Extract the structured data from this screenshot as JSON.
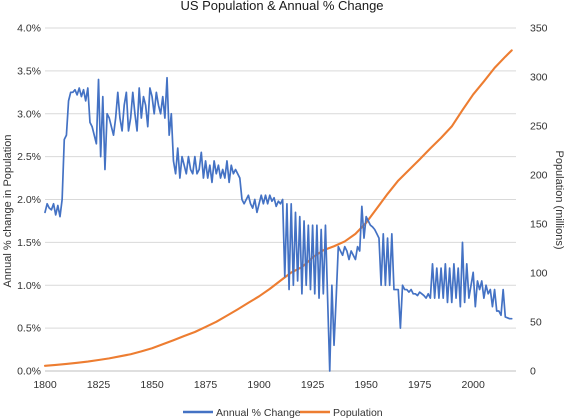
{
  "chart_data": {
    "type": "line",
    "title": "US Population & Annual % Change",
    "xlabel": "",
    "ylabel": "Annual % change in Population",
    "y2label": "Population (millions)",
    "xlim": [
      1800,
      2020
    ],
    "ylim": [
      0.0,
      4.0
    ],
    "y2lim": [
      0,
      350
    ],
    "x_ticks": [
      "1800",
      "1825",
      "1850",
      "1875",
      "1900",
      "1925",
      "1950",
      "1975",
      "2000"
    ],
    "y_ticks": [
      "0.0%",
      "0.5%",
      "1.0%",
      "1.5%",
      "2.0%",
      "2.5%",
      "3.0%",
      "3.5%",
      "4.0%"
    ],
    "y2_ticks": [
      "0",
      "50",
      "100",
      "150",
      "200",
      "250",
      "300",
      "350"
    ],
    "grid": true,
    "legend_position": "bottom",
    "series": [
      {
        "name": "Annual % Change",
        "axis": "left",
        "color": "#4472C4",
        "points": [
          [
            1800,
            1.85
          ],
          [
            1801,
            1.95
          ],
          [
            1802,
            1.9
          ],
          [
            1803,
            1.88
          ],
          [
            1804,
            1.95
          ],
          [
            1805,
            1.82
          ],
          [
            1806,
            1.93
          ],
          [
            1807,
            1.8
          ],
          [
            1808,
            2.0
          ],
          [
            1809,
            2.7
          ],
          [
            1810,
            2.75
          ],
          [
            1811,
            3.15
          ],
          [
            1812,
            3.25
          ],
          [
            1813,
            3.25
          ],
          [
            1814,
            3.28
          ],
          [
            1815,
            3.22
          ],
          [
            1816,
            3.3
          ],
          [
            1817,
            3.2
          ],
          [
            1818,
            3.28
          ],
          [
            1819,
            3.15
          ],
          [
            1820,
            3.3
          ],
          [
            1821,
            2.9
          ],
          [
            1822,
            2.85
          ],
          [
            1823,
            2.75
          ],
          [
            1824,
            2.65
          ],
          [
            1825,
            3.4
          ],
          [
            1826,
            2.5
          ],
          [
            1827,
            3.2
          ],
          [
            1828,
            2.35
          ],
          [
            1829,
            3.0
          ],
          [
            1830,
            2.95
          ],
          [
            1831,
            2.85
          ],
          [
            1832,
            2.75
          ],
          [
            1833,
            2.95
          ],
          [
            1834,
            3.25
          ],
          [
            1835,
            2.95
          ],
          [
            1836,
            2.8
          ],
          [
            1837,
            3.1
          ],
          [
            1838,
            3.25
          ],
          [
            1839,
            2.8
          ],
          [
            1840,
            2.95
          ],
          [
            1841,
            3.25
          ],
          [
            1842,
            3.0
          ],
          [
            1843,
            2.8
          ],
          [
            1844,
            3.3
          ],
          [
            1845,
            2.95
          ],
          [
            1846,
            3.2
          ],
          [
            1847,
            3.1
          ],
          [
            1848,
            2.85
          ],
          [
            1849,
            3.3
          ],
          [
            1850,
            3.2
          ],
          [
            1851,
            3.0
          ],
          [
            1852,
            3.25
          ],
          [
            1853,
            3.1
          ],
          [
            1854,
            3.0
          ],
          [
            1855,
            3.2
          ],
          [
            1856,
            2.95
          ],
          [
            1857,
            3.42
          ],
          [
            1858,
            2.75
          ],
          [
            1859,
            3.0
          ],
          [
            1860,
            2.45
          ],
          [
            1861,
            2.3
          ],
          [
            1862,
            2.6
          ],
          [
            1863,
            2.25
          ],
          [
            1864,
            2.5
          ],
          [
            1865,
            2.4
          ],
          [
            1866,
            2.3
          ],
          [
            1867,
            2.5
          ],
          [
            1868,
            2.35
          ],
          [
            1869,
            2.3
          ],
          [
            1870,
            2.5
          ],
          [
            1871,
            2.3
          ],
          [
            1872,
            2.35
          ],
          [
            1873,
            2.55
          ],
          [
            1874,
            2.25
          ],
          [
            1875,
            2.45
          ],
          [
            1876,
            2.25
          ],
          [
            1877,
            2.4
          ],
          [
            1878,
            2.2
          ],
          [
            1879,
            2.45
          ],
          [
            1880,
            2.3
          ],
          [
            1881,
            2.4
          ],
          [
            1882,
            2.25
          ],
          [
            1883,
            2.35
          ],
          [
            1884,
            2.25
          ],
          [
            1885,
            2.45
          ],
          [
            1886,
            2.2
          ],
          [
            1887,
            2.4
          ],
          [
            1888,
            2.3
          ],
          [
            1889,
            2.35
          ],
          [
            1890,
            2.3
          ],
          [
            1891,
            2.25
          ],
          [
            1892,
            2.0
          ],
          [
            1893,
            1.95
          ],
          [
            1894,
            2.0
          ],
          [
            1895,
            2.05
          ],
          [
            1896,
            1.95
          ],
          [
            1897,
            1.9
          ],
          [
            1898,
            2.0
          ],
          [
            1899,
            1.85
          ],
          [
            1900,
            1.95
          ],
          [
            1901,
            2.05
          ],
          [
            1902,
            1.95
          ],
          [
            1903,
            2.05
          ],
          [
            1904,
            1.95
          ],
          [
            1905,
            2.05
          ],
          [
            1906,
            1.98
          ],
          [
            1907,
            2.02
          ],
          [
            1908,
            1.92
          ],
          [
            1909,
            1.98
          ],
          [
            1910,
            1.95
          ],
          [
            1911,
            2.0
          ],
          [
            1912,
            1.1
          ],
          [
            1913,
            1.95
          ],
          [
            1914,
            0.95
          ],
          [
            1915,
            1.95
          ],
          [
            1916,
            1.0
          ],
          [
            1917,
            1.85
          ],
          [
            1918,
            1.05
          ],
          [
            1919,
            1.8
          ],
          [
            1920,
            0.9
          ],
          [
            1921,
            1.75
          ],
          [
            1922,
            1.0
          ],
          [
            1923,
            1.7
          ],
          [
            1924,
            0.95
          ],
          [
            1925,
            1.7
          ],
          [
            1926,
            0.9
          ],
          [
            1927,
            1.7
          ],
          [
            1928,
            0.85
          ],
          [
            1929,
            1.65
          ],
          [
            1930,
            0.9
          ],
          [
            1931,
            1.7
          ],
          [
            1932,
            0.85
          ],
          [
            1933,
            0.0
          ],
          [
            1934,
            1.0
          ],
          [
            1935,
            0.3
          ],
          [
            1936,
            0.85
          ],
          [
            1937,
            1.45
          ],
          [
            1938,
            1.4
          ],
          [
            1939,
            1.35
          ],
          [
            1940,
            1.45
          ],
          [
            1941,
            1.4
          ],
          [
            1942,
            1.3
          ],
          [
            1943,
            1.4
          ],
          [
            1944,
            1.35
          ],
          [
            1945,
            1.3
          ],
          [
            1946,
            1.45
          ],
          [
            1947,
            1.4
          ],
          [
            1948,
            1.92
          ],
          [
            1949,
            1.55
          ],
          [
            1950,
            1.8
          ],
          [
            1951,
            1.75
          ],
          [
            1952,
            1.7
          ],
          [
            1953,
            1.68
          ],
          [
            1954,
            1.65
          ],
          [
            1955,
            1.6
          ],
          [
            1956,
            1.55
          ],
          [
            1957,
            1.0
          ],
          [
            1958,
            1.6
          ],
          [
            1959,
            1.0
          ],
          [
            1960,
            1.55
          ],
          [
            1961,
            1.0
          ],
          [
            1962,
            1.6
          ],
          [
            1963,
            0.95
          ],
          [
            1964,
            0.95
          ],
          [
            1965,
            0.95
          ],
          [
            1966,
            0.5
          ],
          [
            1967,
            1.0
          ],
          [
            1968,
            0.95
          ],
          [
            1969,
            0.95
          ],
          [
            1970,
            0.92
          ],
          [
            1971,
            0.95
          ],
          [
            1972,
            0.9
          ],
          [
            1973,
            0.9
          ],
          [
            1974,
            0.88
          ],
          [
            1975,
            0.92
          ],
          [
            1976,
            0.9
          ],
          [
            1977,
            0.88
          ],
          [
            1978,
            0.85
          ],
          [
            1979,
            0.9
          ],
          [
            1980,
            0.85
          ],
          [
            1981,
            1.25
          ],
          [
            1982,
            0.85
          ],
          [
            1983,
            1.2
          ],
          [
            1984,
            0.85
          ],
          [
            1985,
            1.2
          ],
          [
            1986,
            0.85
          ],
          [
            1987,
            1.25
          ],
          [
            1988,
            0.8
          ],
          [
            1989,
            1.2
          ],
          [
            1990,
            0.8
          ],
          [
            1991,
            1.25
          ],
          [
            1992,
            0.85
          ],
          [
            1993,
            1.2
          ],
          [
            1994,
            0.75
          ],
          [
            1995,
            1.5
          ],
          [
            1996,
            0.8
          ],
          [
            1997,
            1.25
          ],
          [
            1998,
            0.85
          ],
          [
            1999,
            1.0
          ],
          [
            2000,
            1.15
          ],
          [
            2001,
            0.75
          ],
          [
            2002,
            1.05
          ],
          [
            2003,
            0.95
          ],
          [
            2004,
            1.05
          ],
          [
            2005,
            0.85
          ],
          [
            2006,
            1.0
          ],
          [
            2007,
            0.9
          ],
          [
            2008,
            0.95
          ],
          [
            2009,
            0.75
          ],
          [
            2010,
            0.95
          ],
          [
            2011,
            0.7
          ],
          [
            2012,
            0.7
          ],
          [
            2013,
            0.65
          ],
          [
            2014,
            0.95
          ],
          [
            2015,
            0.63
          ],
          [
            2016,
            0.62
          ],
          [
            2017,
            0.61
          ],
          [
            2018,
            0.61
          ]
        ]
      },
      {
        "name": "Population",
        "axis": "right",
        "color": "#ED7D31",
        "points": [
          [
            1800,
            5.3
          ],
          [
            1805,
            6.2
          ],
          [
            1810,
            7.2
          ],
          [
            1815,
            8.4
          ],
          [
            1820,
            9.6
          ],
          [
            1825,
            11.2
          ],
          [
            1830,
            12.9
          ],
          [
            1835,
            15.0
          ],
          [
            1840,
            17.1
          ],
          [
            1845,
            20.0
          ],
          [
            1850,
            23.2
          ],
          [
            1855,
            27.3
          ],
          [
            1860,
            31.4
          ],
          [
            1865,
            35.7
          ],
          [
            1870,
            39.8
          ],
          [
            1875,
            45.0
          ],
          [
            1880,
            50.2
          ],
          [
            1885,
            56.5
          ],
          [
            1890,
            62.9
          ],
          [
            1895,
            69.6
          ],
          [
            1900,
            76.2
          ],
          [
            1905,
            83.8
          ],
          [
            1910,
            92.2
          ],
          [
            1915,
            100.5
          ],
          [
            1920,
            106.0
          ],
          [
            1925,
            115.8
          ],
          [
            1930,
            123.2
          ],
          [
            1935,
            127.3
          ],
          [
            1940,
            132.2
          ],
          [
            1945,
            139.9
          ],
          [
            1950,
            151.3
          ],
          [
            1955,
            165.9
          ],
          [
            1960,
            180.7
          ],
          [
            1965,
            194.3
          ],
          [
            1970,
            205.1
          ],
          [
            1975,
            216.0
          ],
          [
            1980,
            227.2
          ],
          [
            1985,
            237.9
          ],
          [
            1990,
            249.6
          ],
          [
            1995,
            266.3
          ],
          [
            2000,
            282.2
          ],
          [
            2005,
            295.5
          ],
          [
            2010,
            309.3
          ],
          [
            2015,
            320.7
          ],
          [
            2018,
            327.2
          ]
        ]
      }
    ]
  }
}
